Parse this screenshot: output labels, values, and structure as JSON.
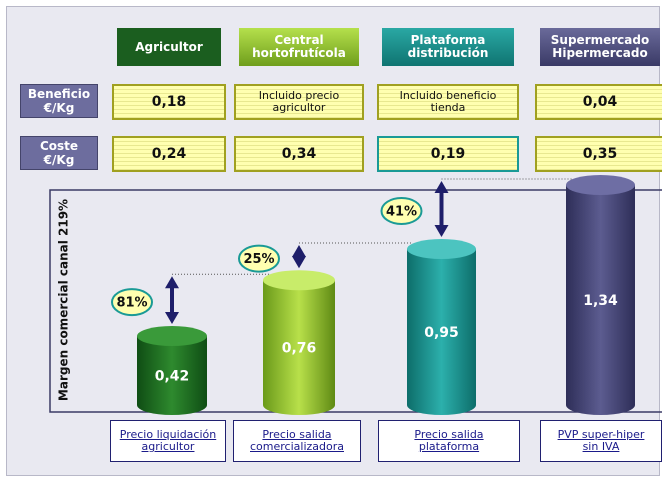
{
  "row_labels": {
    "beneficio": "Beneficio\n€/Kg",
    "coste": "Coste\n€/Kg"
  },
  "axis_label": "Margen comercial  canal  219%",
  "columns": [
    {
      "header": "Agricultor",
      "beneficio": "0,18",
      "coste": "0,24",
      "label": "Precio liquidación\nagricultor",
      "value": 0.42,
      "value_label": "0,42",
      "margin": "81%"
    },
    {
      "header": "Central\nhortofrutícola",
      "beneficio": "Incluido precio\nagricultor",
      "coste": "0,34",
      "label": "Precio salida\ncomercializadora",
      "value": 0.76,
      "value_label": "0,76",
      "margin": "25%"
    },
    {
      "header": "Plataforma\ndistribución",
      "beneficio": "Incluido beneficio\ntienda",
      "coste": "0,19",
      "label": "Precio salida\nplataforma",
      "value": 0.95,
      "value_label": "0,95",
      "margin": "41%"
    },
    {
      "header": "Supermercado\nHipermercado",
      "beneficio": "0,04",
      "coste": "0,35",
      "label": "PVP super-hiper\nsin  IVA",
      "value": 1.34,
      "value_label": "1,34"
    }
  ]
}
